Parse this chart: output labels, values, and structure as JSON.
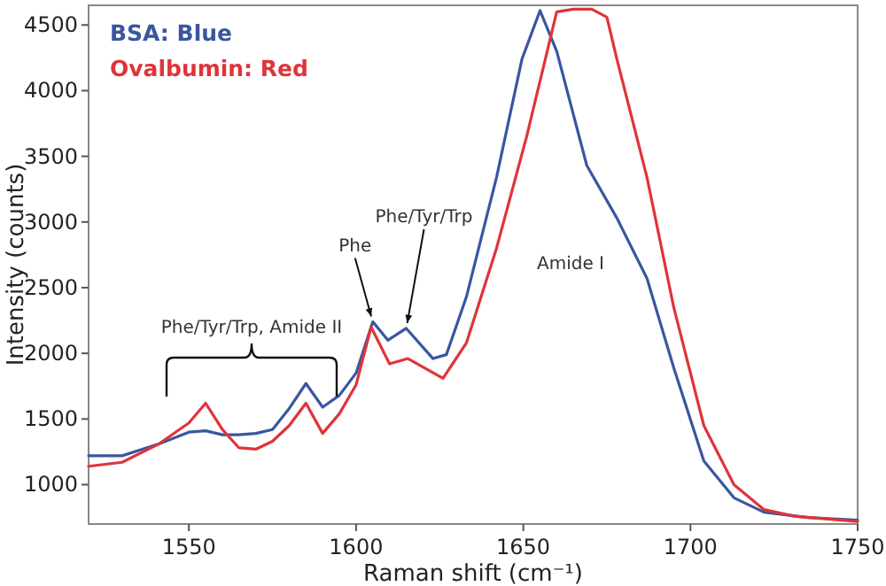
{
  "chart_data": {
    "type": "line",
    "xlabel": "Raman shift (cm⁻¹)",
    "ylabel": "Intensity (counts)",
    "xlim": [
      1520,
      1750
    ],
    "ylim": [
      700,
      4650
    ],
    "xticks": [
      1550,
      1600,
      1650,
      1700,
      1750
    ],
    "yticks": [
      1000,
      1500,
      2000,
      2500,
      3000,
      3500,
      4000,
      4500
    ],
    "grid": false,
    "legend": "top left",
    "line_style": "solid",
    "marker": "none",
    "series": [
      {
        "name": "BSA: Blue",
        "color": "#3a56a0",
        "x": [
          1520,
          1530,
          1541,
          1550,
          1555,
          1560,
          1565,
          1570,
          1575,
          1580,
          1585,
          1590,
          1595,
          1600,
          1605,
          1609.5,
          1615,
          1623,
          1627,
          1633,
          1642,
          1649.6,
          1655,
          1660,
          1669,
          1678,
          1687,
          1695,
          1704,
          1713,
          1722,
          1735,
          1750
        ],
        "values": [
          1220,
          1220,
          1310,
          1400,
          1410,
          1380,
          1380,
          1390,
          1420,
          1580,
          1770,
          1590,
          1680,
          1850,
          2240,
          2100,
          2190,
          1960,
          1990,
          2430,
          3340,
          4240,
          4610,
          4300,
          3430,
          3030,
          2570,
          1890,
          1180,
          900,
          790,
          750,
          730
        ]
      },
      {
        "name": "Ovalbumin: Red",
        "color": "#e0333a",
        "x": [
          1520,
          1530,
          1541,
          1550,
          1555,
          1560,
          1565,
          1570,
          1575,
          1580,
          1585,
          1590,
          1595,
          1600,
          1604.5,
          1610,
          1615.5,
          1626,
          1633,
          1642,
          1651,
          1660,
          1665,
          1670.5,
          1675,
          1678,
          1687,
          1695,
          1704,
          1713,
          1722,
          1731,
          1750
        ],
        "values": [
          1140,
          1170,
          1310,
          1470,
          1620,
          1420,
          1280,
          1270,
          1330,
          1450,
          1620,
          1390,
          1540,
          1760,
          2200,
          1920,
          1960,
          1810,
          2080,
          2800,
          3650,
          4600,
          4620,
          4620,
          4560,
          4240,
          3340,
          2350,
          1450,
          1000,
          810,
          760,
          720
        ]
      }
    ],
    "annotations": [
      {
        "text": "Phe",
        "x": 1605,
        "y": 2240
      },
      {
        "text": "Phe/Tyr/Trp",
        "x": 1615,
        "y": 2190
      },
      "Phe/Tyr/Trp, Amide II",
      "Amide I"
    ]
  }
}
